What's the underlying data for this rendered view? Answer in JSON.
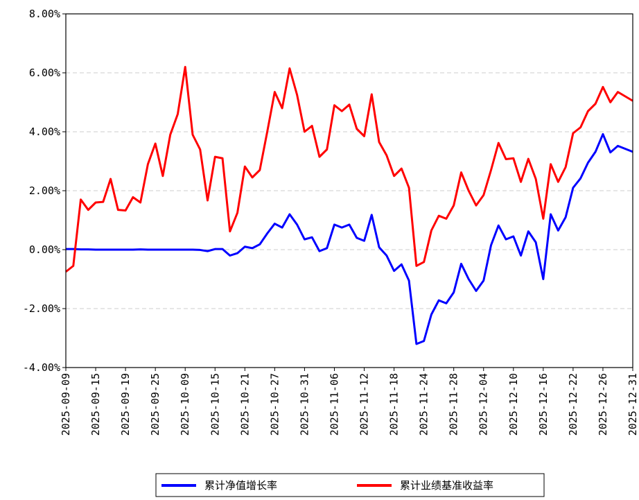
{
  "chart_data": {
    "type": "line",
    "categories": [
      "2025-09-09",
      null,
      null,
      null,
      "2025-09-15",
      null,
      null,
      null,
      "2025-09-19",
      null,
      null,
      null,
      "2025-09-25",
      null,
      null,
      null,
      "2025-10-09",
      null,
      null,
      null,
      "2025-10-15",
      null,
      null,
      null,
      "2025-10-21",
      null,
      null,
      null,
      "2025-10-27",
      null,
      null,
      null,
      "2025-10-31",
      null,
      null,
      null,
      "2025-11-06",
      null,
      null,
      null,
      "2025-11-12",
      null,
      null,
      null,
      "2025-11-18",
      null,
      null,
      null,
      "2025-11-24",
      null,
      null,
      null,
      "2025-11-28",
      null,
      null,
      null,
      "2025-12-04",
      null,
      null,
      null,
      "2025-12-10",
      null,
      null,
      null,
      "2025-12-16",
      null,
      null,
      null,
      "2025-12-22",
      null,
      null,
      null,
      "2025-12-26",
      null,
      null,
      null,
      "2025-12-31"
    ],
    "series": [
      {
        "name": "累计净值增长率",
        "color": "#0000ff",
        "values": [
          0.02,
          0.02,
          0.01,
          0.01,
          0,
          0,
          0,
          0,
          0,
          0,
          0.01,
          0,
          0,
          0,
          0,
          0,
          0,
          0,
          -0.01,
          -0.05,
          0.02,
          0.02,
          -0.2,
          -0.12,
          0.1,
          0.05,
          0.18,
          0.55,
          0.88,
          0.75,
          1.2,
          0.85,
          0.35,
          0.42,
          -0.05,
          0.05,
          0.85,
          0.75,
          0.85,
          0.4,
          0.3,
          1.18,
          0.08,
          -0.2,
          -0.72,
          -0.5,
          -1.05,
          -3.2,
          -3.1,
          -2.2,
          -1.72,
          -1.82,
          -1.45,
          -0.48,
          -1.0,
          -1.4,
          -1.05,
          0.15,
          0.82,
          0.35,
          0.45,
          -0.2,
          0.62,
          0.25,
          -1.0,
          1.2,
          0.65,
          1.1,
          2.1,
          2.42,
          2.95,
          3.32,
          3.92,
          3.3,
          3.52,
          3.42,
          3.32
        ]
      },
      {
        "name": "累计业绩基准收益率",
        "color": "#ff0000",
        "values": [
          -0.75,
          -0.55,
          1.7,
          1.35,
          1.6,
          1.62,
          2.4,
          1.35,
          1.33,
          1.78,
          1.6,
          2.9,
          3.6,
          2.5,
          3.9,
          4.6,
          6.2,
          3.9,
          3.4,
          1.67,
          3.15,
          3.1,
          0.62,
          1.25,
          2.82,
          2.45,
          2.7,
          4.0,
          5.35,
          4.8,
          6.15,
          5.25,
          4.0,
          4.2,
          3.15,
          3.4,
          4.9,
          4.7,
          4.92,
          4.1,
          3.85,
          5.27,
          3.65,
          3.2,
          2.5,
          2.75,
          2.1,
          -0.55,
          -0.42,
          0.65,
          1.15,
          1.05,
          1.5,
          2.62,
          2.0,
          1.5,
          1.85,
          2.7,
          3.62,
          3.07,
          3.1,
          2.3,
          3.08,
          2.4,
          1.05,
          2.9,
          2.3,
          2.8,
          3.95,
          4.15,
          4.7,
          4.95,
          5.52,
          5.0,
          5.35,
          5.2,
          5.05
        ]
      }
    ],
    "ylim": [
      -4,
      8
    ],
    "yticks": [
      {
        "value": -4,
        "label": "-4.00%"
      },
      {
        "value": -2,
        "label": "-2.00%"
      },
      {
        "value": 0,
        "label": "0.00%"
      },
      {
        "value": 2,
        "label": "2.00%"
      },
      {
        "value": 4,
        "label": "4.00%"
      },
      {
        "value": 6,
        "label": "6.00%"
      },
      {
        "value": 8,
        "label": "8.00%"
      }
    ],
    "grid": true,
    "legend": "bottom"
  }
}
